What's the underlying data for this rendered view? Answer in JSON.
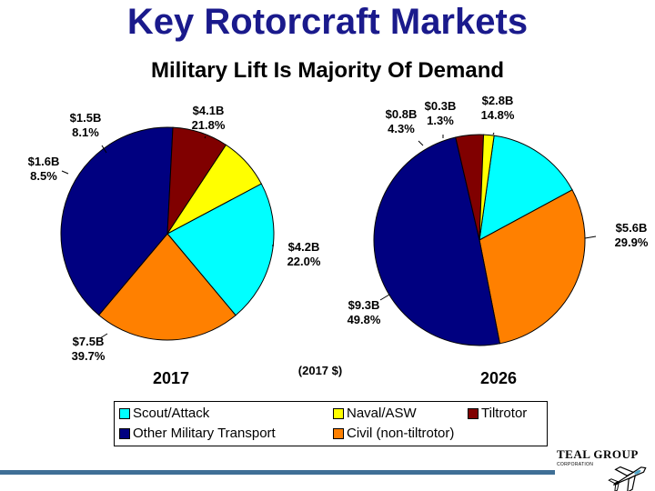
{
  "title": "Key Rotorcraft Markets",
  "subtitle": "Military Lift Is Majority Of Demand",
  "note": "(2017 $)",
  "logo": {
    "name": "TEAL GROUP",
    "sub": "CORPORATION"
  },
  "chart_data": [
    {
      "type": "pie",
      "title": "2017",
      "slices": [
        {
          "category": "Scout/Attack",
          "value": 4.1,
          "amount": "$4.1B",
          "percent": "21.8%",
          "color": "#00ffff"
        },
        {
          "category": "Civil (non-tiltrotor)",
          "value": 4.2,
          "amount": "$4.2B",
          "percent": "22.0%",
          "color": "#ff8000"
        },
        {
          "category": "Other Military Transport",
          "value": 7.5,
          "amount": "$7.5B",
          "percent": "39.7%",
          "color": "#000080"
        },
        {
          "category": "Tiltrotor",
          "value": 1.6,
          "amount": "$1.6B",
          "percent": "8.5%",
          "color": "#800000"
        },
        {
          "category": "Naval/ASW",
          "value": 1.5,
          "amount": "$1.5B",
          "percent": "8.1%",
          "color": "#ffff00"
        }
      ]
    },
    {
      "type": "pie",
      "title": "2026",
      "slices": [
        {
          "category": "Scout/Attack",
          "value": 2.8,
          "amount": "$2.8B",
          "percent": "14.8%",
          "color": "#00ffff"
        },
        {
          "category": "Civil (non-tiltrotor)",
          "value": 5.6,
          "amount": "$5.6B",
          "percent": "29.9%",
          "color": "#ff8000"
        },
        {
          "category": "Other Military Transport",
          "value": 9.3,
          "amount": "$9.3B",
          "percent": "49.8%",
          "color": "#000080"
        },
        {
          "category": "Tiltrotor",
          "value": 0.8,
          "amount": "$0.8B",
          "percent": "4.3%",
          "color": "#800000"
        },
        {
          "category": "Naval/ASW",
          "value": 0.3,
          "amount": "$0.3B",
          "percent": "1.3%",
          "color": "#ffff00"
        }
      ]
    }
  ],
  "legend": [
    {
      "label": "Scout/Attack",
      "color": "#00ffff"
    },
    {
      "label": "Naval/ASW",
      "color": "#ffff00"
    },
    {
      "label": "Tiltrotor",
      "color": "#800000"
    },
    {
      "label": "Other Military Transport",
      "color": "#000080"
    },
    {
      "label": "Civil (non-tiltrotor)",
      "color": "#ff8000"
    }
  ]
}
